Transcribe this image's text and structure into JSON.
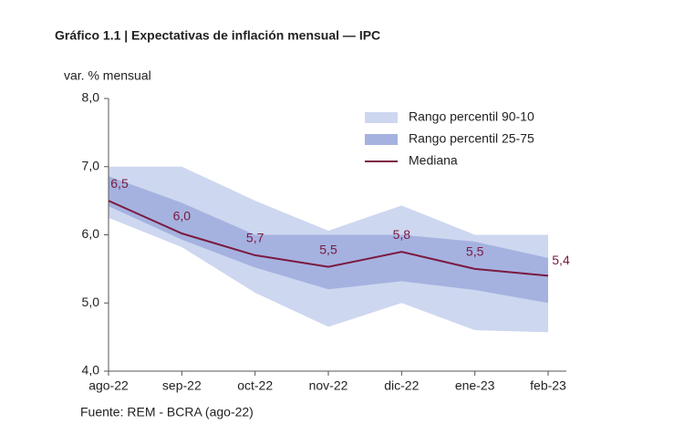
{
  "chart_data": {
    "type": "band-line",
    "title": "Gráfico 1.1 | Expectativas de inflación mensual — IPC",
    "y_label": "var. % mensual",
    "source": "Fuente: REM - BCRA (ago-22)",
    "categories": [
      "ago-22",
      "sep-22",
      "oct-22",
      "nov-22",
      "dic-22",
      "ene-23",
      "feb-23"
    ],
    "ylim": [
      4,
      8
    ],
    "yticks": [
      {
        "value": 4,
        "label": "4,0"
      },
      {
        "value": 5,
        "label": "5,0"
      },
      {
        "value": 6,
        "label": "6,0"
      },
      {
        "value": 7,
        "label": "7,0"
      },
      {
        "value": 8,
        "label": "8,0"
      }
    ],
    "legend": "top-right",
    "bands": [
      {
        "name": "Rango percentil 90-10",
        "color": "#cdd7ef",
        "upper": [
          7.0,
          7.0,
          6.5,
          6.06,
          6.43,
          6.0,
          6.0
        ],
        "lower": [
          6.25,
          5.82,
          5.15,
          4.65,
          5.0,
          4.6,
          4.57
        ]
      },
      {
        "name": "Rango percentil 25-75",
        "color": "#a5b2e0",
        "upper": [
          6.86,
          6.47,
          6.0,
          6.0,
          6.0,
          5.9,
          5.66
        ],
        "lower": [
          6.42,
          5.93,
          5.52,
          5.2,
          5.32,
          5.19,
          5.0
        ]
      }
    ],
    "series": [
      {
        "name": "Mediana",
        "color": "#7b1a40",
        "values": [
          6.5,
          6.02,
          5.7,
          5.53,
          5.75,
          5.5,
          5.4
        ],
        "value_labels": [
          "6,5",
          "6,0",
          "5,7",
          "5,5",
          "5,8",
          "5,5",
          "5,4"
        ]
      }
    ]
  }
}
